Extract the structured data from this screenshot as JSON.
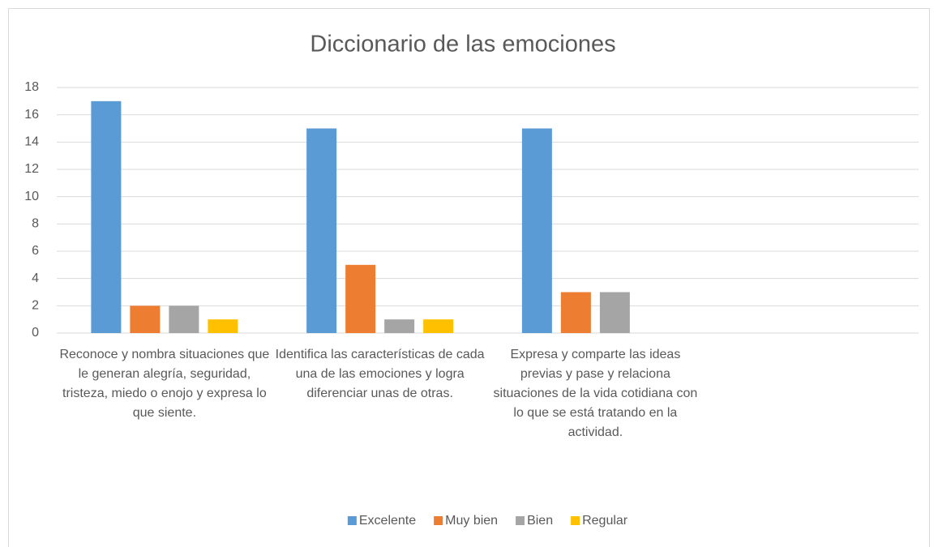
{
  "chart_data": {
    "type": "bar",
    "title": "Diccionario de las emociones",
    "categories": [
      "Reconoce y nombra situaciones que le generan alegría, seguridad, tristeza, miedo o enojo y expresa lo que siente.",
      "Identifica las características de cada una de las emociones y logra diferenciar unas de otras.",
      "Expresa y comparte las ideas previas y pase y relaciona situaciones de la vida cotidiana con lo que se está tratando en la actividad.",
      null
    ],
    "series": [
      {
        "name": "Excelente",
        "color": "#5b9bd5",
        "values": [
          17,
          15,
          15,
          null
        ]
      },
      {
        "name": "Muy bien",
        "color": "#ed7d31",
        "values": [
          2,
          5,
          3,
          null
        ]
      },
      {
        "name": "Bien",
        "color": "#a5a5a5",
        "values": [
          2,
          1,
          3,
          null
        ]
      },
      {
        "name": "Regular",
        "color": "#ffc000",
        "values": [
          1,
          1,
          0,
          null
        ]
      }
    ],
    "ylim": [
      0,
      18
    ],
    "yticks": [
      0,
      2,
      4,
      6,
      8,
      10,
      12,
      14,
      16,
      18
    ],
    "grid": true,
    "legend": "bottom"
  }
}
